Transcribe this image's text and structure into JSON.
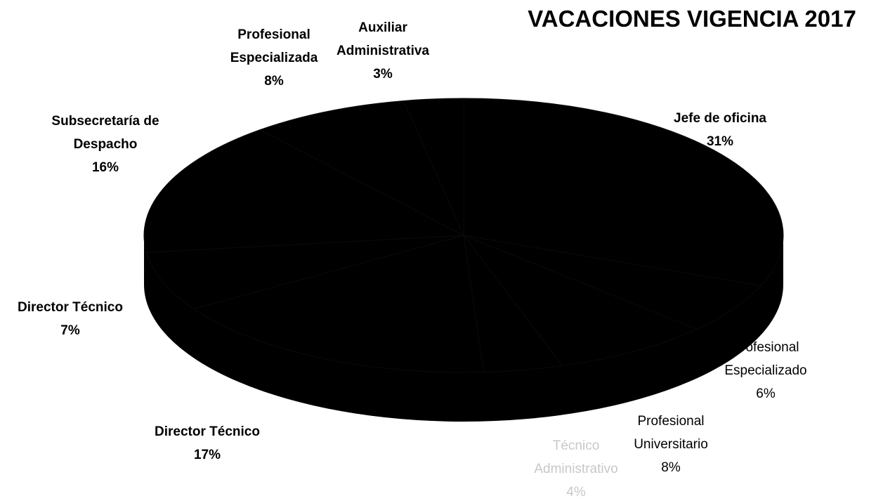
{
  "chart_data": {
    "type": "pie",
    "title": "VACACIONES VIGENCIA 2017",
    "categories": [
      "Jefe de oficina",
      "Profesional Especializado",
      "Profesional Universitario",
      "Técnico Administrativo",
      "Director Técnico",
      "Director Técnico",
      "Subsecretaría de Despacho",
      "Profesional Especializada",
      "Auxiliar Administrativa"
    ],
    "values": [
      31,
      6,
      8,
      4,
      17,
      7,
      16,
      8,
      3
    ],
    "value_labels": [
      "31%",
      "6%",
      "8%",
      "4%",
      "17%",
      "7%",
      "16%",
      "8%",
      "3%"
    ],
    "color": "#000000"
  }
}
